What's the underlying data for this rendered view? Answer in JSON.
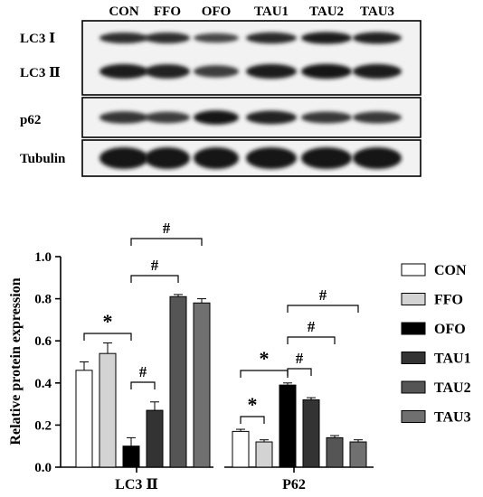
{
  "blot": {
    "lanes": [
      "CON",
      "FFO",
      "OFO",
      "TAU1",
      "TAU2",
      "TAU3"
    ],
    "rows": [
      {
        "label": "LC3 Ⅰ",
        "intensity": [
          0.7,
          0.7,
          0.45,
          0.75,
          0.9,
          0.85
        ]
      },
      {
        "label": "LC3 Ⅱ",
        "intensity": [
          0.9,
          0.85,
          0.55,
          0.9,
          0.95,
          0.9
        ]
      },
      {
        "label": "p62",
        "intensity": [
          0.65,
          0.55,
          0.95,
          0.85,
          0.6,
          0.6
        ]
      },
      {
        "label": "Tubulin",
        "intensity": [
          1.0,
          1.0,
          1.0,
          1.0,
          1.0,
          1.0
        ]
      }
    ]
  },
  "chart_data": {
    "type": "bar",
    "ylabel": "Relative protein expression",
    "ylim": [
      0,
      1.0
    ],
    "yticks": [
      "0.0",
      "0.2",
      "0.4",
      "0.6",
      "0.8",
      "1.0"
    ],
    "categories": [
      "LC3 Ⅱ",
      "P62"
    ],
    "series": [
      {
        "name": "CON",
        "color": "#ffffff",
        "values": [
          0.46,
          0.17
        ],
        "errors": [
          0.04,
          0.01
        ]
      },
      {
        "name": "FFO",
        "color": "#d3d3d3",
        "values": [
          0.54,
          0.12
        ],
        "errors": [
          0.05,
          0.01
        ]
      },
      {
        "name": "OFO",
        "color": "#000000",
        "values": [
          0.1,
          0.39
        ],
        "errors": [
          0.04,
          0.01
        ]
      },
      {
        "name": "TAU1",
        "color": "#333333",
        "values": [
          0.27,
          0.32
        ],
        "errors": [
          0.04,
          0.01
        ]
      },
      {
        "name": "TAU2",
        "color": "#555555",
        "values": [
          0.81,
          0.14
        ],
        "errors": [
          0.01,
          0.01
        ]
      },
      {
        "name": "TAU3",
        "color": "#707070",
        "values": [
          0.78,
          0.12
        ],
        "errors": [
          0.02,
          0.01
        ]
      }
    ],
    "significance": [
      {
        "category": 0,
        "from": 0,
        "to": 2,
        "label": "*"
      },
      {
        "category": 0,
        "from": 2,
        "to": 3,
        "label": "#"
      },
      {
        "category": 0,
        "from": 2,
        "to": 4,
        "label": "#"
      },
      {
        "category": 0,
        "from": 2,
        "to": 5,
        "label": "#"
      },
      {
        "category": 1,
        "from": 0,
        "to": 1,
        "label": "*"
      },
      {
        "category": 1,
        "from": 0,
        "to": 2,
        "label": "*"
      },
      {
        "category": 1,
        "from": 2,
        "to": 3,
        "label": "#"
      },
      {
        "category": 1,
        "from": 2,
        "to": 4,
        "label": "#"
      },
      {
        "category": 1,
        "from": 2,
        "to": 5,
        "label": "#"
      }
    ],
    "legend_position": "right"
  }
}
